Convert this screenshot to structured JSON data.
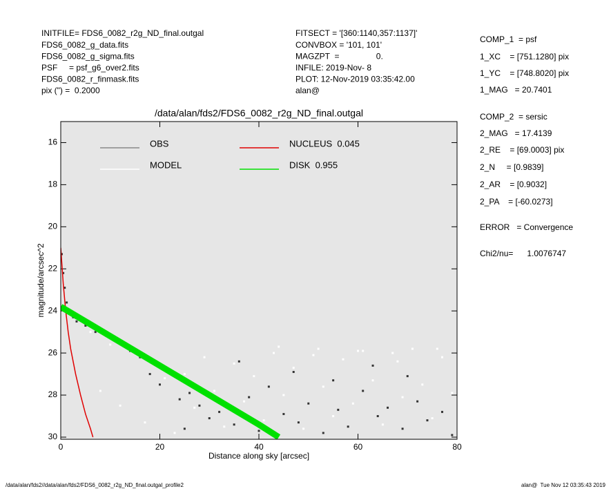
{
  "chart_data": {
    "type": "scatter",
    "title": "/data/alan/fds2/FDS6_0082_r2g_ND_final.outgal",
    "x_label": "Distance along sky [arcsec]",
    "y_label": "magnitude/arcsec^2",
    "xlim": [
      0,
      80
    ],
    "xticks": [
      0,
      20,
      40,
      60,
      80
    ],
    "ylim": [
      15,
      30.1
    ],
    "yticks": [
      16,
      18,
      20,
      22,
      24,
      26,
      28,
      30
    ],
    "y_inverted": true,
    "background": "#e6e6e6",
    "header_left": [
      "INITFILE= FDS6_0082_r2g_ND_final.outgal",
      "FDS6_0082_g_data.fits",
      "FDS6_0082_g_sigma.fits",
      "PSF     = psf_g6_over2.fits",
      "FDS6_0082_r_finmask.fits",
      "pix (\") =  0.2000"
    ],
    "header_mid": [
      "FITSECT = '[360:1140,357:1137]'",
      "CONVBOX = '101, 101'",
      "MAGZPT  =                0.",
      "INFILE: 2019-Nov- 8",
      "PLOT: 12-Nov-2019 03:35:42.00",
      "alan@"
    ],
    "header_right": [
      "COMP_1  = psf",
      "1_XC    = [751.1280] pix",
      "1_YC    = [748.8020] pix",
      "1_MAG   = 20.7401",
      "COMP_2  = sersic",
      "2_MAG   = 17.4139",
      "2_RE    = [69.0003] pix",
      "2_N     = [0.9839]",
      "2_AR    = [0.9032]",
      "2_PA    = [-60.0273]",
      "ERROR   = Convergence",
      "Chi2/nu=      1.0076747"
    ],
    "footer_left": "/data/alan/fds2//data/alan/fds2/FDS6_0082_r2g_ND_final.outgal_profile2",
    "footer_right": "alan@  Tue Nov 12 03:35:43 2019",
    "series": [
      {
        "name": "OBS",
        "color": "#333333",
        "legend_color": "#888888",
        "mode": "markers",
        "x": [
          0.2,
          0.5,
          0.8,
          1.2,
          1.8,
          2.5,
          3.2,
          5,
          7,
          9,
          12,
          14,
          16,
          18,
          20,
          22,
          24,
          26,
          28,
          30,
          32,
          35,
          38,
          40,
          42,
          45,
          48,
          50,
          53,
          56,
          58,
          61,
          64,
          66,
          69,
          72,
          74,
          77,
          79,
          47,
          55,
          63,
          70,
          36,
          25
        ],
        "values": [
          21.3,
          22.2,
          22.9,
          23.6,
          24.0,
          24.3,
          24.5,
          24.7,
          25.0,
          25.1,
          25.5,
          25.9,
          26.2,
          27.0,
          27.5,
          26.8,
          28.2,
          27.9,
          28.5,
          29.1,
          28.8,
          29.4,
          28.1,
          29.7,
          27.6,
          28.9,
          29.3,
          28.4,
          29.8,
          28.7,
          29.5,
          27.8,
          29.0,
          28.6,
          29.6,
          28.3,
          29.2,
          28.8,
          29.9,
          26.9,
          27.3,
          26.6,
          27.1,
          26.4,
          29.6
        ]
      },
      {
        "name": "MODEL",
        "color": "#ffffff",
        "legend_color": "#ffffff",
        "mode": "markers",
        "x": [
          6,
          8,
          10,
          12,
          15,
          17,
          19,
          21,
          23,
          25,
          27,
          29,
          31,
          33,
          35,
          37,
          39,
          41,
          43,
          45,
          47,
          49,
          51,
          53,
          55,
          57,
          59,
          61,
          63,
          65,
          67,
          69,
          71,
          73,
          75,
          77,
          79,
          44,
          52,
          60,
          68,
          76
        ],
        "values": [
          25.0,
          27.8,
          25.6,
          28.5,
          26.0,
          29.3,
          26.4,
          27.2,
          29.8,
          27.0,
          28.6,
          26.2,
          27.8,
          29.5,
          26.5,
          28.3,
          27.1,
          29.2,
          26.0,
          28.0,
          26.7,
          29.6,
          26.1,
          27.6,
          29.0,
          26.3,
          28.4,
          25.9,
          27.3,
          29.4,
          26.0,
          28.1,
          25.8,
          27.5,
          29.1,
          26.2,
          27.9,
          25.7,
          25.8,
          25.9,
          26.4,
          25.8
        ]
      },
      {
        "name": "NUCLEUS  0.045",
        "color": "#e00000",
        "legend_color": "#e00000",
        "mode": "lines",
        "x": [
          0,
          0.5,
          1,
          1.5,
          2,
          3,
          4,
          5,
          6,
          6.5
        ],
        "values": [
          21.0,
          22.7,
          24.0,
          25.0,
          25.8,
          27.0,
          28.0,
          28.9,
          29.6,
          30.0
        ]
      },
      {
        "name": "DISK  0.955",
        "color": "#00e000",
        "legend_color": "#00e000",
        "mode": "lines",
        "x": [
          0,
          10,
          20,
          30,
          40,
          44
        ],
        "values": [
          23.8,
          25.2,
          26.6,
          28.0,
          29.4,
          30.0
        ]
      }
    ]
  }
}
